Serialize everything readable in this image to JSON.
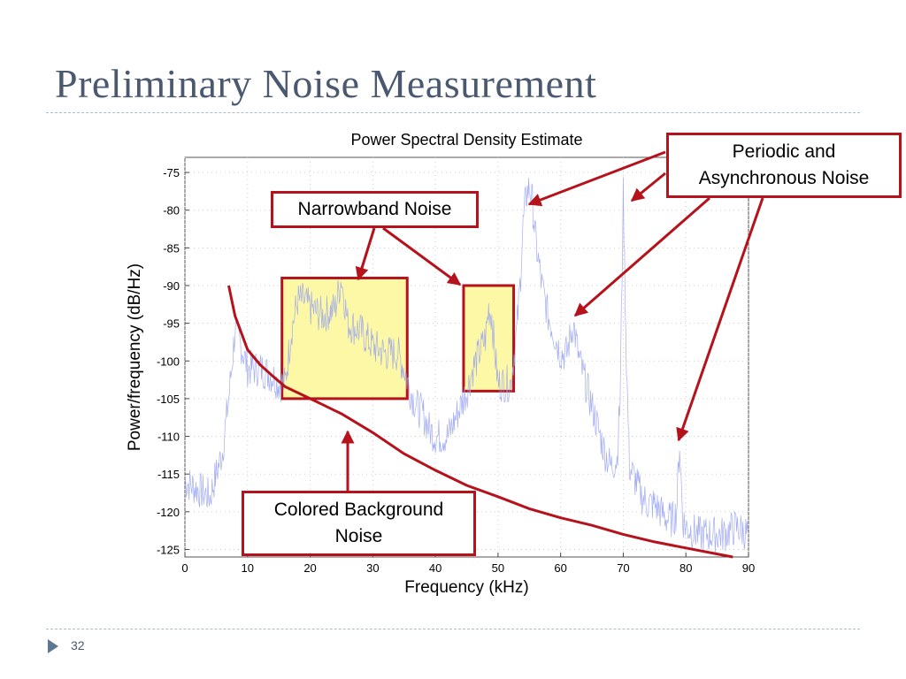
{
  "slide": {
    "title": "Preliminary Noise Measurement",
    "slide_number": "32"
  },
  "callouts": {
    "narrowband": "Narrowband Noise",
    "periodic": "Periodic and Asynchronous Noise",
    "colored": "Colored Background Noise"
  },
  "colors": {
    "title": "#4a5970",
    "psd_trace": "#9aa5f0",
    "background_fit": "#b5121b",
    "callout_border": "#b5121b",
    "highlight_fill": "#fdf8a6"
  },
  "chart_data": {
    "type": "line",
    "title": "Power Spectral Density Estimate",
    "xlabel": "Frequency (kHz)",
    "ylabel": "Power/frequency (dB/Hz)",
    "xlim": [
      0,
      90
    ],
    "ylim": [
      -126,
      -73
    ],
    "xticks": [
      0,
      10,
      20,
      30,
      40,
      50,
      60,
      70,
      80,
      90
    ],
    "yticks": [
      -75,
      -80,
      -85,
      -90,
      -95,
      -100,
      -105,
      -110,
      -115,
      -120,
      -125
    ],
    "grid": true,
    "highlight_regions": [
      {
        "x": [
          15.5,
          35.5
        ],
        "y": [
          -105,
          -89
        ]
      },
      {
        "x": [
          44.5,
          52.5
        ],
        "y": [
          -104,
          -90
        ]
      }
    ],
    "series": [
      {
        "style": "noisy-line",
        "x": [
          0,
          2,
          4,
          6,
          7,
          8,
          9,
          10,
          12,
          14,
          15,
          16,
          17,
          18,
          19,
          20,
          22,
          24,
          25,
          26,
          28,
          30,
          32,
          34,
          35,
          36,
          37,
          38,
          39,
          40,
          42,
          44,
          45,
          46,
          47,
          48,
          48.5,
          49,
          49.5,
          50,
          51,
          52,
          53,
          53.5,
          54,
          54.5,
          55,
          55.5,
          56,
          57,
          58,
          60,
          61,
          62,
          63,
          64,
          65,
          66,
          67,
          68,
          69,
          69.5,
          70,
          70.5,
          71,
          72,
          73,
          74,
          75,
          76,
          77,
          78,
          78.5,
          79,
          79.5,
          80,
          82,
          84,
          86,
          88,
          90
        ],
        "y": [
          -116,
          -117,
          -118,
          -112,
          -105,
          -96,
          -98,
          -101,
          -101,
          -102,
          -103,
          -103,
          -96,
          -92,
          -92,
          -93,
          -94,
          -93,
          -89,
          -95,
          -96,
          -98,
          -99,
          -99,
          -101,
          -104,
          -106,
          -107,
          -109,
          -110,
          -110,
          -106,
          -104,
          -101,
          -99,
          -97,
          -93,
          -94,
          -99,
          -103,
          -103,
          -103,
          -96,
          -90,
          -82,
          -78,
          -77,
          -79,
          -84,
          -90,
          -94,
          -99,
          -99,
          -95,
          -100,
          -103,
          -106,
          -109,
          -112,
          -114,
          -113,
          -105,
          -78,
          -100,
          -114,
          -116,
          -118,
          -119,
          -119,
          -120,
          -121,
          -121,
          -120,
          -111,
          -121,
          -122,
          -123,
          -123,
          -123,
          -122,
          -123
        ]
      },
      {
        "style": "smooth-line",
        "x": [
          7,
          8,
          10,
          12,
          14,
          16,
          18,
          20,
          22,
          25,
          30,
          35,
          40,
          45,
          50,
          55,
          60,
          65,
          70,
          75,
          80,
          85,
          87.5
        ],
        "y": [
          -90,
          -94,
          -98.5,
          -100.5,
          -102,
          -103.4,
          -104.2,
          -105,
          -105.8,
          -107,
          -109.5,
          -112.3,
          -114.5,
          -116.5,
          -118,
          -119.6,
          -120.8,
          -121.8,
          -123,
          -124,
          -124.8,
          -125.6,
          -126
        ]
      }
    ]
  }
}
